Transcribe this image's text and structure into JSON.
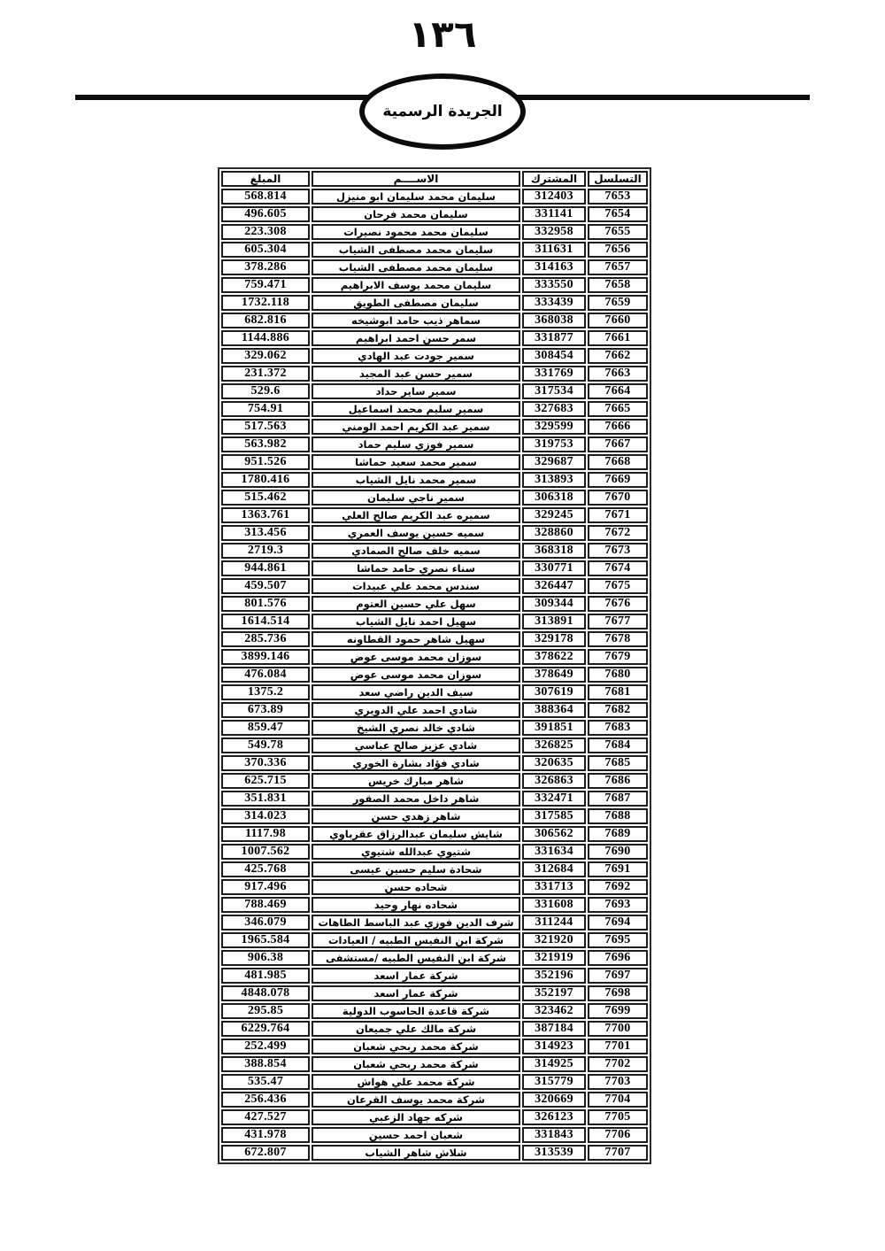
{
  "page": {
    "page_number": "١٣٦",
    "banner_title": "الجريدة الرسمية"
  },
  "table": {
    "headers": {
      "serial": "التسلسل",
      "subscriber": "المشترك",
      "name": "الاســــم",
      "amount": "المبلغ"
    },
    "rows": [
      [
        "7653",
        "312403",
        "سليمان محمد سليمان ابو منيزل",
        "568.814"
      ],
      [
        "7654",
        "331141",
        "سليمان محمد فرحان",
        "496.605"
      ],
      [
        "7655",
        "332958",
        "سليمان محمد محمود نصيرات",
        "223.308"
      ],
      [
        "7656",
        "311631",
        "سليمان محمد مصطفى الشياب",
        "605.304"
      ],
      [
        "7657",
        "314163",
        "سليمان محمد مصطفى الشياب",
        "378.286"
      ],
      [
        "7658",
        "333550",
        "سليمان محمد يوسف الابراهيم",
        "759.471"
      ],
      [
        "7659",
        "333439",
        "سليمان مصطفى الطويق",
        "1732.118"
      ],
      [
        "7660",
        "368038",
        "سماهر ذيب حامد ابوشيخه",
        "682.816"
      ],
      [
        "7661",
        "331877",
        "سمر حسن احمد ابراهيم",
        "1144.886"
      ],
      [
        "7662",
        "308454",
        "سمير جودت عبد الهادي",
        "329.062"
      ],
      [
        "7663",
        "331769",
        "سمير حسن عبد المجيد",
        "231.372"
      ],
      [
        "7664",
        "317534",
        "سمير ساير حداد",
        "529.6"
      ],
      [
        "7665",
        "327683",
        "سمير سليم محمد اسماعيل",
        "754.91"
      ],
      [
        "7666",
        "329599",
        "سمير عبد الكريم احمد الومني",
        "517.563"
      ],
      [
        "7667",
        "319753",
        "سمير فوزي سليم حماد",
        "563.982"
      ],
      [
        "7668",
        "329687",
        "سمير محمد سعيد حماشا",
        "951.526"
      ],
      [
        "7669",
        "313893",
        "سمير محمد نايل الشياب",
        "1780.416"
      ],
      [
        "7670",
        "306318",
        "سمير ناجي سليمان",
        "515.462"
      ],
      [
        "7671",
        "329245",
        "سميره عبد الكريم صالح العلي",
        "1363.761"
      ],
      [
        "7672",
        "328860",
        "سميه حسين يوسف العمري",
        "313.456"
      ],
      [
        "7673",
        "368318",
        "سميه خلف صالح الصمادي",
        "2719.3"
      ],
      [
        "7674",
        "330771",
        "سناء نصري حامد حماشا",
        "944.861"
      ],
      [
        "7675",
        "326447",
        "سندس محمد علي عبيدات",
        "459.507"
      ],
      [
        "7676",
        "309344",
        "سهل علي حسين العتوم",
        "801.576"
      ],
      [
        "7677",
        "313891",
        "سهيل احمد نايل الشياب",
        "1614.514"
      ],
      [
        "7678",
        "329178",
        "سهيل شاهر حمود القطاونه",
        "285.736"
      ],
      [
        "7679",
        "378622",
        "سوزان محمد موسى عوض",
        "3899.146"
      ],
      [
        "7680",
        "378649",
        "سوزان محمد موسى عوض",
        "476.084"
      ],
      [
        "7681",
        "307619",
        "سيف الدين راضي سعد",
        "1375.2"
      ],
      [
        "7682",
        "388364",
        "شادي احمد علي الدويري",
        "673.89"
      ],
      [
        "7683",
        "391851",
        "شادي خالد نصري الشيخ",
        "859.47"
      ],
      [
        "7684",
        "326825",
        "شادي عزيز صالح عباسي",
        "549.78"
      ],
      [
        "7685",
        "320635",
        "شادي فؤاد بشارة الخوري",
        "370.336"
      ],
      [
        "7686",
        "326863",
        "شاهر مبارك خريس",
        "625.715"
      ],
      [
        "7687",
        "332471",
        "شاهر داخل محمد الصقور",
        "351.831"
      ],
      [
        "7688",
        "317585",
        "شاهر زهدي حسن",
        "314.023"
      ],
      [
        "7689",
        "306562",
        "شايش سليمان عبدالرزاق عقرباوي",
        "1117.98"
      ],
      [
        "7690",
        "331634",
        "شتيوي عبدالله شتيوي",
        "1007.562"
      ],
      [
        "7691",
        "312684",
        "شحادة سليم حسين عيسى",
        "425.768"
      ],
      [
        "7692",
        "331713",
        "شحاده حسن",
        "917.496"
      ],
      [
        "7693",
        "331608",
        "شحاده نهار وحيد",
        "788.469"
      ],
      [
        "7694",
        "311244",
        "شرف الدين فوزي عبد الباسط الطاهات",
        "346.079"
      ],
      [
        "7695",
        "321920",
        "شركة ابن النفيس الطبيه / العيادات",
        "1965.584"
      ],
      [
        "7696",
        "321919",
        "شركة ابن النفيس الطبيه /مستشفى",
        "906.38"
      ],
      [
        "7697",
        "352196",
        "شركة عمار اسعد",
        "481.985"
      ],
      [
        "7698",
        "352197",
        "شركة عمار اسعد",
        "4848.078"
      ],
      [
        "7699",
        "323462",
        "شركة قاعدة الحاسوب الدولية",
        "295.85"
      ],
      [
        "7700",
        "387184",
        "شركة مالك علي جميعان",
        "6229.764"
      ],
      [
        "7701",
        "314923",
        "شركة محمد ربحي شعبان",
        "252.499"
      ],
      [
        "7702",
        "314925",
        "شركة محمد ربحي شعبان",
        "388.854"
      ],
      [
        "7703",
        "315779",
        "شركة محمد علي هواش",
        "535.47"
      ],
      [
        "7704",
        "320669",
        "شركة محمد يوسف القرعان",
        "256.436"
      ],
      [
        "7705",
        "326123",
        "شركه جهاد الزعبي",
        "427.527"
      ],
      [
        "7706",
        "331843",
        "شعبان احمد حسين",
        "431.978"
      ],
      [
        "7707",
        "313539",
        "شلاش شاهر الشياب",
        "672.807"
      ]
    ]
  }
}
